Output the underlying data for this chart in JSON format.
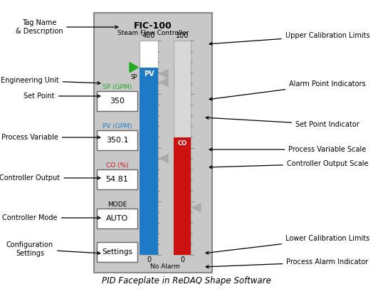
{
  "title": "PID Faceplate in ReDAQ Shape Software",
  "faceplate_bg": "#c8c8c8",
  "tag_name": "FIC-100",
  "tag_desc": "Steam Flow Controller",
  "sp_label": "SP (GPM)",
  "sp_value": "350",
  "pv_label": "PV (GPM)",
  "pv_value": "350.1",
  "co_label": "CO (%)",
  "co_value": "54.81",
  "mode_label": "MODE",
  "mode_value": "AUTO",
  "settings_label": "Settings",
  "pv_bar_color": "#1e7ac4",
  "co_bar_color": "#cc1111",
  "upper_pv": "400",
  "upper_co": "100",
  "lower_pv": "0",
  "lower_co": "0",
  "alarm_label": "No Alarm",
  "sp_green": "#22aa22",
  "pv_blue": "#1e7ac4",
  "co_red": "#cc1111"
}
